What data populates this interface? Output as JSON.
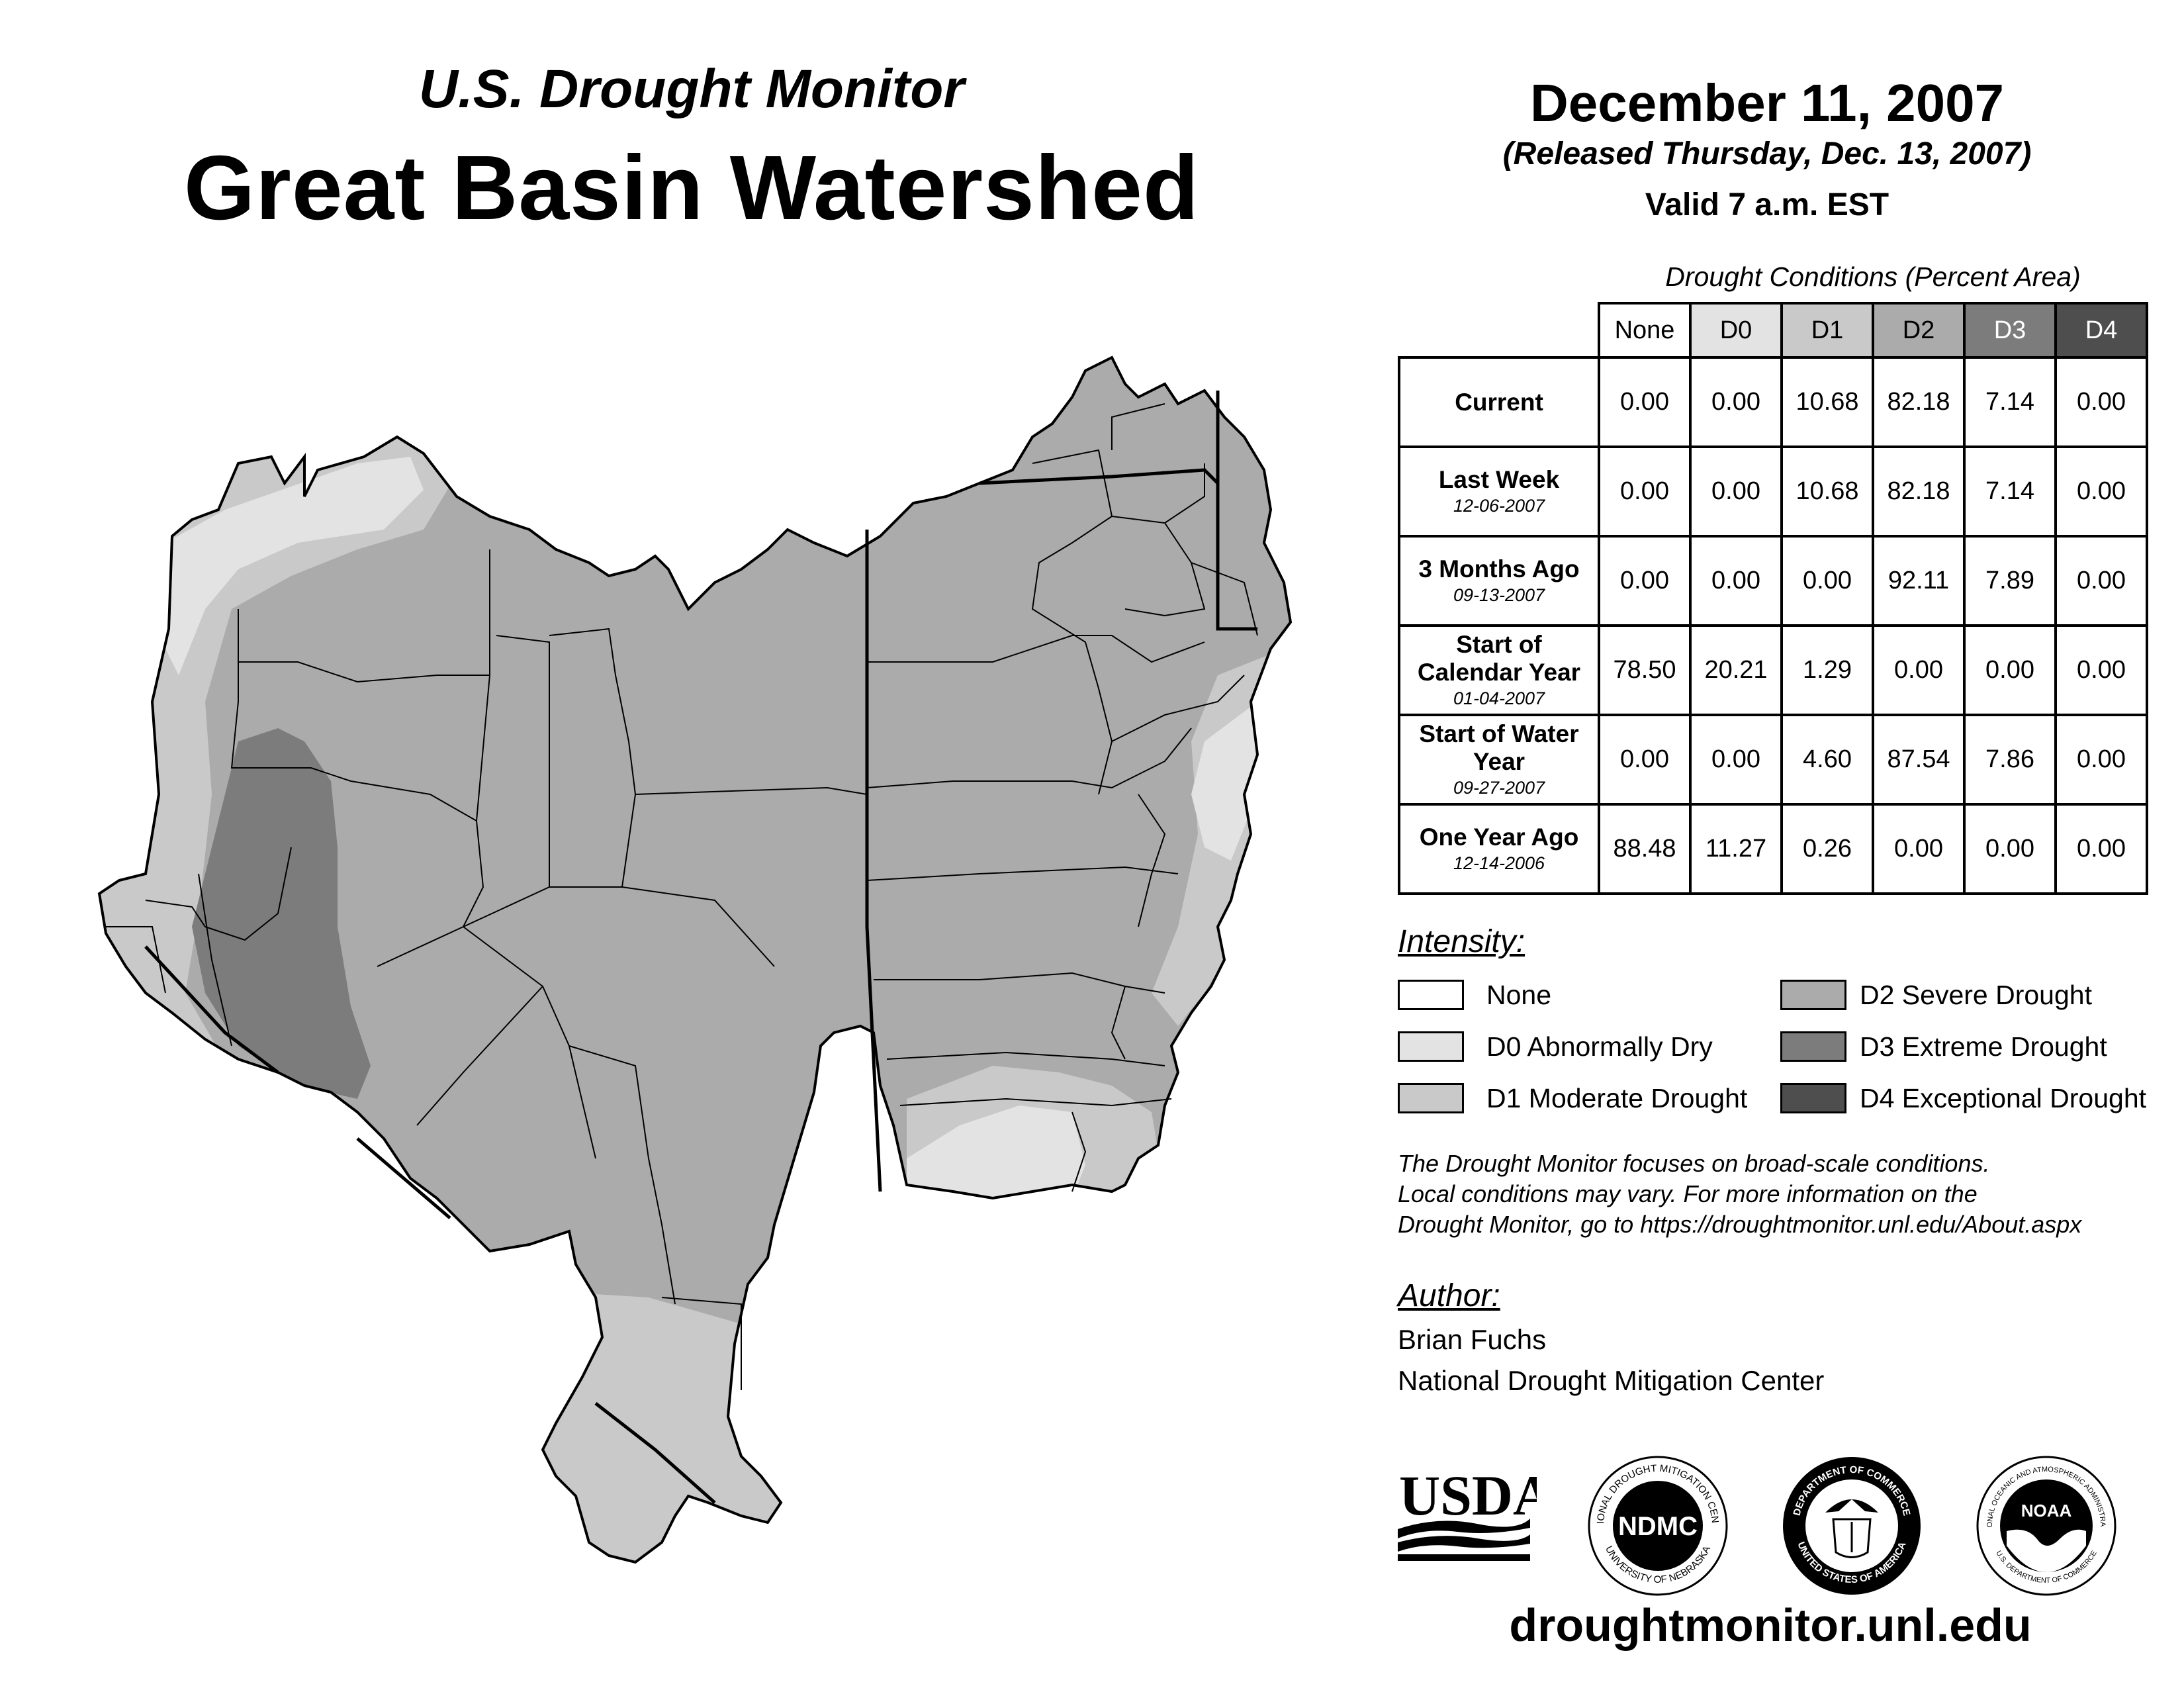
{
  "header": {
    "subtitle": "U.S. Drought Monitor",
    "title": "Great Basin Watershed",
    "date": "December 11, 2007",
    "released": "(Released Thursday, Dec. 13, 2007)",
    "valid": "Valid 7 a.m. EST"
  },
  "table": {
    "caption": "Drought Conditions (Percent Area)",
    "columns": [
      "None",
      "D0",
      "D1",
      "D2",
      "D3",
      "D4"
    ],
    "rows": [
      {
        "label": "Current",
        "date": "",
        "values": [
          "0.00",
          "0.00",
          "10.68",
          "82.18",
          "7.14",
          "0.00"
        ]
      },
      {
        "label": "Last Week",
        "date": "12-06-2007",
        "values": [
          "0.00",
          "0.00",
          "10.68",
          "82.18",
          "7.14",
          "0.00"
        ]
      },
      {
        "label": "3 Months Ago",
        "date": "09-13-2007",
        "values": [
          "0.00",
          "0.00",
          "0.00",
          "92.11",
          "7.89",
          "0.00"
        ]
      },
      {
        "label": "Start of Calendar Year",
        "date": "01-04-2007",
        "values": [
          "78.50",
          "20.21",
          "1.29",
          "0.00",
          "0.00",
          "0.00"
        ]
      },
      {
        "label": "Start of Water Year",
        "date": "09-27-2007",
        "values": [
          "0.00",
          "0.00",
          "4.60",
          "87.54",
          "7.86",
          "0.00"
        ]
      },
      {
        "label": "One Year Ago",
        "date": "12-14-2006",
        "values": [
          "88.48",
          "11.27",
          "0.26",
          "0.00",
          "0.00",
          "0.00"
        ]
      }
    ]
  },
  "legend": {
    "heading": "Intensity:",
    "items": [
      {
        "label": "None",
        "color": "#ffffff"
      },
      {
        "label": "D0 Abnormally Dry",
        "color": "#e3e3e3"
      },
      {
        "label": "D1 Moderate Drought",
        "color": "#c9c9c9"
      },
      {
        "label": "D2 Severe Drought",
        "color": "#ababab"
      },
      {
        "label": "D3 Extreme Drought",
        "color": "#7c7c7c"
      },
      {
        "label": "D4 Exceptional Drought",
        "color": "#4e4e4e"
      }
    ]
  },
  "note": {
    "line1": "The Drought Monitor focuses on broad-scale conditions.",
    "line2": "Local conditions may vary. For more information on the",
    "line3": "Drought Monitor, go to https://droughtmonitor.unl.edu/About.aspx"
  },
  "author": {
    "heading": "Author:",
    "name": "Brian Fuchs",
    "org": "National Drought Mitigation Center"
  },
  "logos": {
    "usda": "USDA",
    "ndmc_text": "NDMC",
    "ndmc_ring_top": "NATIONAL DROUGHT MITIGATION CENTER",
    "ndmc_ring_bottom": "UNIVERSITY OF NEBRASKA",
    "doc_ring_top": "DEPARTMENT OF COMMERCE",
    "doc_ring_bottom": "UNITED STATES OF AMERICA",
    "noaa_text": "NOAA",
    "noaa_ring_top": "NATIONAL OCEANIC AND ATMOSPHERIC ADMINISTRATION",
    "noaa_ring_bottom": "U.S. DEPARTMENT OF COMMERCE"
  },
  "footer": {
    "url": "droughtmonitor.unl.edu"
  }
}
